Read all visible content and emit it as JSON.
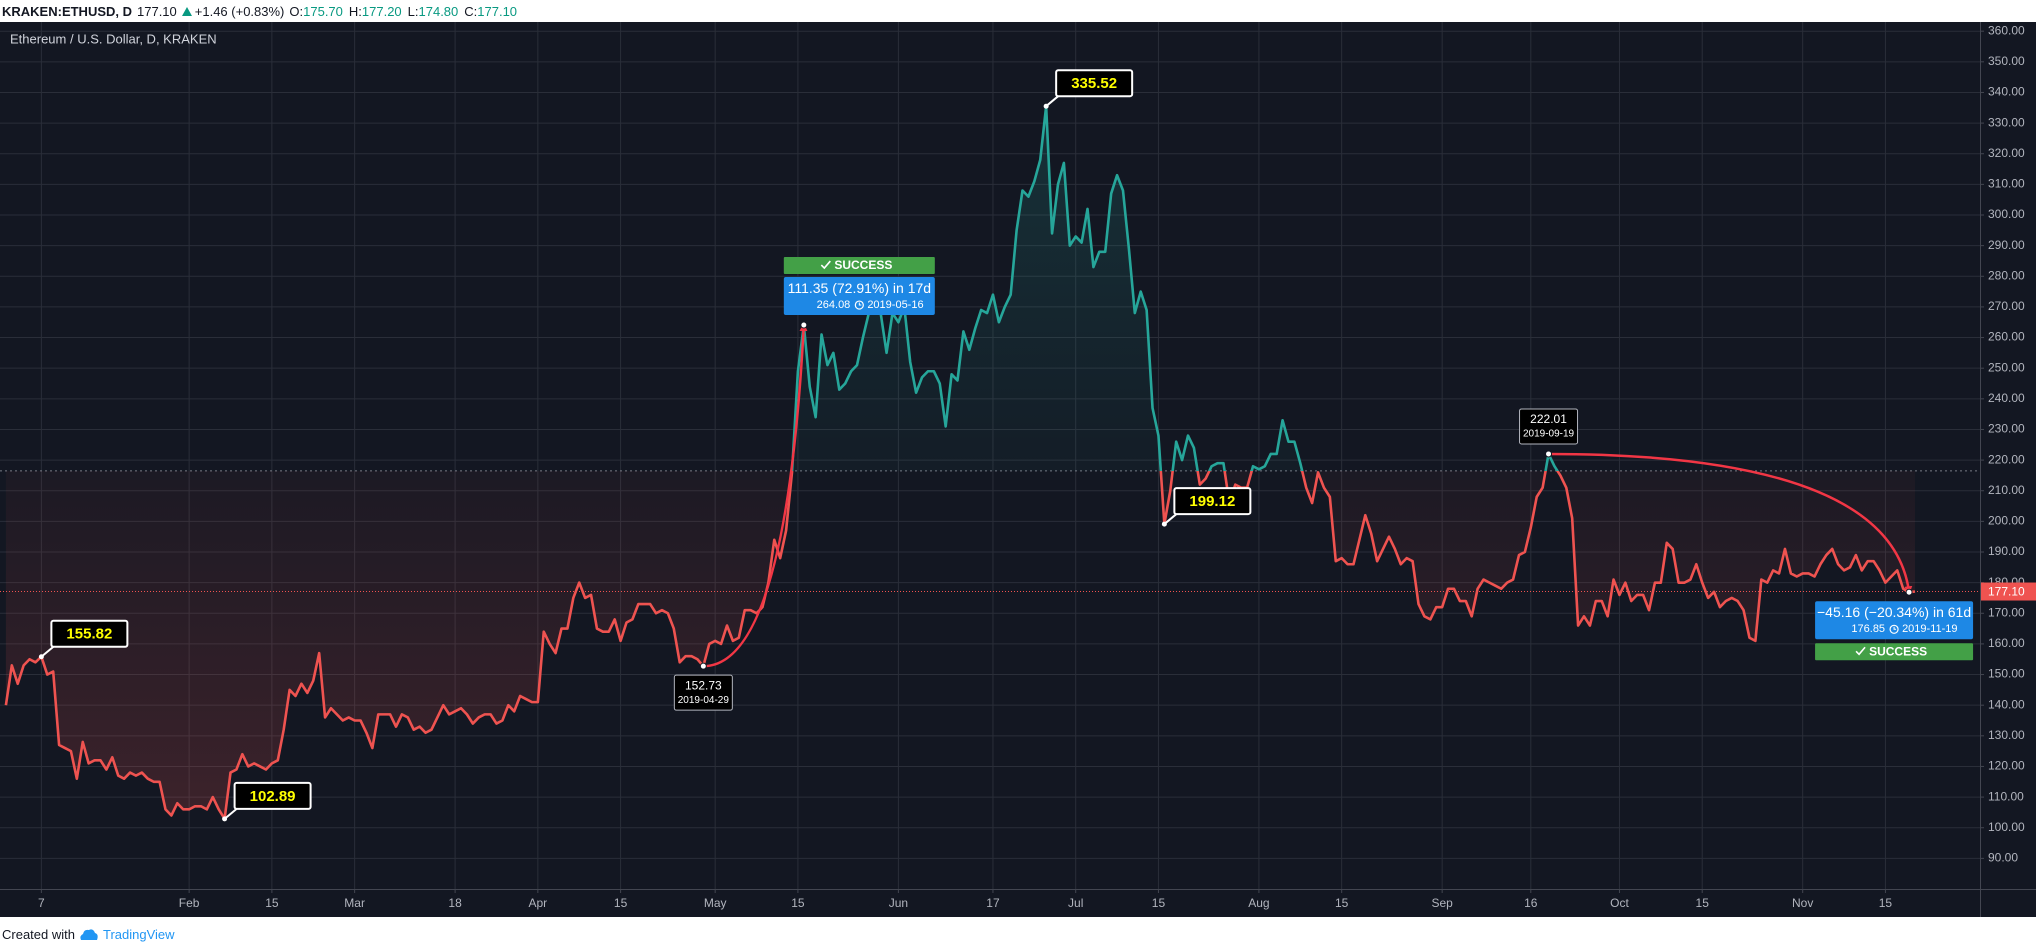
{
  "header": {
    "symbol": "KRAKEN:ETHUSD, D",
    "last": "177.10",
    "change": "+1.46 (+0.83%)",
    "ohlc": [
      {
        "label": "O:",
        "value": "175.70"
      },
      {
        "label": "H:",
        "value": "177.20"
      },
      {
        "label": "L:",
        "value": "174.80"
      },
      {
        "label": "C:",
        "value": "177.10"
      }
    ]
  },
  "footer": {
    "text": "Created with",
    "brand": "TradingView"
  },
  "chart_data": {
    "type": "line",
    "style": "baseline",
    "title": "Ethereum / U.S. Dollar, D, KRAKEN",
    "above_color": "#26a69a",
    "below_color": "#ef5350",
    "baseline": 216.5,
    "grid": true,
    "x": [
      "2019-01-01",
      "2019-01-02",
      "2019-01-03",
      "2019-01-04",
      "2019-01-05",
      "2019-01-06",
      "2019-01-07",
      "2019-01-08",
      "2019-01-09",
      "2019-01-10",
      "2019-01-11",
      "2019-01-12",
      "2019-01-13",
      "2019-01-14",
      "2019-01-15",
      "2019-01-16",
      "2019-01-17",
      "2019-01-18",
      "2019-01-19",
      "2019-01-20",
      "2019-01-21",
      "2019-01-22",
      "2019-01-23",
      "2019-01-24",
      "2019-01-25",
      "2019-01-26",
      "2019-01-27",
      "2019-01-28",
      "2019-01-29",
      "2019-01-30",
      "2019-01-31",
      "2019-02-01",
      "2019-02-02",
      "2019-02-03",
      "2019-02-04",
      "2019-02-05",
      "2019-02-06",
      "2019-02-07",
      "2019-02-08",
      "2019-02-09",
      "2019-02-10",
      "2019-02-11",
      "2019-02-12",
      "2019-02-13",
      "2019-02-14",
      "2019-02-15",
      "2019-02-16",
      "2019-02-17",
      "2019-02-18",
      "2019-02-19",
      "2019-02-20",
      "2019-02-21",
      "2019-02-22",
      "2019-02-23",
      "2019-02-24",
      "2019-02-25",
      "2019-02-26",
      "2019-02-27",
      "2019-02-28",
      "2019-03-01",
      "2019-03-02",
      "2019-03-03",
      "2019-03-04",
      "2019-03-05",
      "2019-03-06",
      "2019-03-07",
      "2019-03-08",
      "2019-03-09",
      "2019-03-10",
      "2019-03-11",
      "2019-03-12",
      "2019-03-13",
      "2019-03-14",
      "2019-03-15",
      "2019-03-16",
      "2019-03-17",
      "2019-03-18",
      "2019-03-19",
      "2019-03-20",
      "2019-03-21",
      "2019-03-22",
      "2019-03-23",
      "2019-03-24",
      "2019-03-25",
      "2019-03-26",
      "2019-03-27",
      "2019-03-28",
      "2019-03-29",
      "2019-03-30",
      "2019-03-31",
      "2019-04-01",
      "2019-04-02",
      "2019-04-03",
      "2019-04-04",
      "2019-04-05",
      "2019-04-06",
      "2019-04-07",
      "2019-04-08",
      "2019-04-09",
      "2019-04-10",
      "2019-04-11",
      "2019-04-12",
      "2019-04-13",
      "2019-04-14",
      "2019-04-15",
      "2019-04-16",
      "2019-04-17",
      "2019-04-18",
      "2019-04-19",
      "2019-04-20",
      "2019-04-21",
      "2019-04-22",
      "2019-04-23",
      "2019-04-24",
      "2019-04-25",
      "2019-04-26",
      "2019-04-27",
      "2019-04-28",
      "2019-04-29",
      "2019-04-30",
      "2019-05-01",
      "2019-05-02",
      "2019-05-03",
      "2019-05-04",
      "2019-05-05",
      "2019-05-06",
      "2019-05-07",
      "2019-05-08",
      "2019-05-09",
      "2019-05-10",
      "2019-05-11",
      "2019-05-12",
      "2019-05-13",
      "2019-05-14",
      "2019-05-15",
      "2019-05-16",
      "2019-05-17",
      "2019-05-18",
      "2019-05-19",
      "2019-05-20",
      "2019-05-21",
      "2019-05-22",
      "2019-05-23",
      "2019-05-24",
      "2019-05-25",
      "2019-05-26",
      "2019-05-27",
      "2019-05-28",
      "2019-05-29",
      "2019-05-30",
      "2019-05-31",
      "2019-06-01",
      "2019-06-02",
      "2019-06-03",
      "2019-06-04",
      "2019-06-05",
      "2019-06-06",
      "2019-06-07",
      "2019-06-08",
      "2019-06-09",
      "2019-06-10",
      "2019-06-11",
      "2019-06-12",
      "2019-06-13",
      "2019-06-14",
      "2019-06-15",
      "2019-06-16",
      "2019-06-17",
      "2019-06-18",
      "2019-06-19",
      "2019-06-20",
      "2019-06-21",
      "2019-06-22",
      "2019-06-23",
      "2019-06-24",
      "2019-06-25",
      "2019-06-26",
      "2019-06-27",
      "2019-06-28",
      "2019-06-29",
      "2019-06-30",
      "2019-07-01",
      "2019-07-02",
      "2019-07-03",
      "2019-07-04",
      "2019-07-05",
      "2019-07-06",
      "2019-07-07",
      "2019-07-08",
      "2019-07-09",
      "2019-07-10",
      "2019-07-11",
      "2019-07-12",
      "2019-07-13",
      "2019-07-14",
      "2019-07-15",
      "2019-07-16",
      "2019-07-17",
      "2019-07-18",
      "2019-07-19",
      "2019-07-20",
      "2019-07-21",
      "2019-07-22",
      "2019-07-23",
      "2019-07-24",
      "2019-07-25",
      "2019-07-26",
      "2019-07-27",
      "2019-07-28",
      "2019-07-29",
      "2019-07-30",
      "2019-07-31",
      "2019-08-01",
      "2019-08-02",
      "2019-08-03",
      "2019-08-04",
      "2019-08-05",
      "2019-08-06",
      "2019-08-07",
      "2019-08-08",
      "2019-08-09",
      "2019-08-10",
      "2019-08-11",
      "2019-08-12",
      "2019-08-13",
      "2019-08-14",
      "2019-08-15",
      "2019-08-16",
      "2019-08-17",
      "2019-08-18",
      "2019-08-19",
      "2019-08-20",
      "2019-08-21",
      "2019-08-22",
      "2019-08-23",
      "2019-08-24",
      "2019-08-25",
      "2019-08-26",
      "2019-08-27",
      "2019-08-28",
      "2019-08-29",
      "2019-08-30",
      "2019-08-31",
      "2019-09-01",
      "2019-09-02",
      "2019-09-03",
      "2019-09-04",
      "2019-09-05",
      "2019-09-06",
      "2019-09-07",
      "2019-09-08",
      "2019-09-09",
      "2019-09-10",
      "2019-09-11",
      "2019-09-12",
      "2019-09-13",
      "2019-09-14",
      "2019-09-15",
      "2019-09-16",
      "2019-09-17",
      "2019-09-18",
      "2019-09-19",
      "2019-09-20",
      "2019-09-21",
      "2019-09-22",
      "2019-09-23",
      "2019-09-24",
      "2019-09-25",
      "2019-09-26",
      "2019-09-27",
      "2019-09-28",
      "2019-09-29",
      "2019-09-30",
      "2019-10-01",
      "2019-10-02",
      "2019-10-03",
      "2019-10-04",
      "2019-10-05",
      "2019-10-06",
      "2019-10-07",
      "2019-10-08",
      "2019-10-09",
      "2019-10-10",
      "2019-10-11",
      "2019-10-12",
      "2019-10-13",
      "2019-10-14",
      "2019-10-15",
      "2019-10-16",
      "2019-10-17",
      "2019-10-18",
      "2019-10-19",
      "2019-10-20",
      "2019-10-21",
      "2019-10-22",
      "2019-10-23",
      "2019-10-24",
      "2019-10-25",
      "2019-10-26",
      "2019-10-27",
      "2019-10-28",
      "2019-10-29",
      "2019-10-30",
      "2019-10-31",
      "2019-11-01",
      "2019-11-02",
      "2019-11-03",
      "2019-11-04",
      "2019-11-05",
      "2019-11-06",
      "2019-11-07",
      "2019-11-08",
      "2019-11-09",
      "2019-11-10",
      "2019-11-11",
      "2019-11-12",
      "2019-11-13",
      "2019-11-14",
      "2019-11-15",
      "2019-11-16",
      "2019-11-17",
      "2019-11-18",
      "2019-11-19",
      "2019-11-20"
    ],
    "values": [
      140,
      153,
      147,
      153,
      155,
      154,
      155.82,
      150,
      151,
      127,
      126,
      125,
      116,
      128,
      121,
      122,
      122,
      119,
      123,
      117,
      116,
      118,
      117,
      118,
      116,
      115,
      115,
      106,
      104,
      108,
      106,
      106,
      107,
      107,
      106,
      110,
      106,
      102.89,
      118,
      119,
      124,
      120,
      121,
      120,
      119,
      121,
      122,
      132,
      145,
      143,
      147,
      144,
      148,
      157,
      136,
      139,
      137,
      135,
      136,
      135,
      135,
      131,
      126,
      137,
      137,
      137,
      133,
      137,
      136,
      132,
      133,
      131,
      132,
      136,
      140,
      137,
      138,
      139,
      137,
      134,
      136,
      137,
      137,
      134,
      135,
      140,
      138,
      143,
      142,
      141,
      141,
      164,
      160,
      157,
      165,
      165,
      175,
      180,
      175,
      176,
      165,
      164,
      164,
      168,
      161,
      167,
      168,
      173,
      173,
      173,
      170,
      171,
      170,
      165,
      154,
      156,
      156,
      155,
      152.73,
      160,
      161,
      160,
      166,
      161,
      162,
      171,
      171,
      170,
      172,
      180,
      194,
      188,
      197,
      216,
      249,
      264.08,
      244,
      234,
      261,
      251,
      255,
      243,
      245,
      249,
      251,
      260,
      268,
      270,
      268,
      255,
      268,
      265,
      270,
      252,
      242,
      247,
      249,
      249,
      245,
      231,
      248,
      246,
      262,
      256,
      263,
      269,
      268,
      274,
      265,
      270,
      274,
      295,
      308,
      306,
      311,
      318,
      335.52,
      294,
      310,
      317,
      290,
      293,
      291,
      302,
      283,
      288,
      288,
      307,
      313,
      308,
      289,
      268,
      275,
      269,
      237,
      228,
      199.12,
      210,
      226,
      220,
      228,
      224,
      212,
      214,
      218,
      219,
      219,
      206,
      212,
      211,
      211,
      218,
      217,
      218,
      222,
      222,
      233,
      226,
      226,
      219,
      211,
      206,
      216,
      211,
      208,
      187,
      188,
      186,
      186,
      194,
      202,
      196,
      187,
      191,
      195,
      191,
      186,
      188,
      187,
      173,
      169,
      168,
      172,
      172,
      178,
      178,
      174,
      174,
      169,
      178,
      181,
      180,
      179,
      178,
      180,
      181,
      189,
      190,
      198,
      208,
      211,
      222.01,
      218,
      215,
      211,
      201,
      166,
      169,
      166,
      174,
      174,
      169,
      181,
      176,
      180,
      174,
      176,
      176,
      171,
      180,
      180,
      193,
      191,
      180,
      180,
      181,
      186,
      180,
      175,
      177,
      172,
      174,
      175,
      174,
      171,
      162,
      161,
      181,
      180,
      184,
      183,
      191,
      183,
      182,
      183,
      183,
      182,
      186,
      189,
      191,
      186,
      184,
      185,
      189,
      184,
      187,
      187,
      184,
      180,
      182,
      184,
      178,
      176.85,
      177.1
    ],
    "last_value": {
      "value": 177.1,
      "label": "177.10"
    },
    "xlim": [
      "2018-12-31",
      "2019-12-01"
    ],
    "xticks": [
      {
        "value": "2019-01-07",
        "label": "7"
      },
      {
        "value": "2019-02-01",
        "label": "Feb"
      },
      {
        "value": "2019-02-15",
        "label": "15"
      },
      {
        "value": "2019-03-01",
        "label": "Mar"
      },
      {
        "value": "2019-03-18",
        "label": "18"
      },
      {
        "value": "2019-04-01",
        "label": "Apr"
      },
      {
        "value": "2019-04-15",
        "label": "15"
      },
      {
        "value": "2019-05-01",
        "label": "May"
      },
      {
        "value": "2019-05-15",
        "label": "15"
      },
      {
        "value": "2019-06-01",
        "label": "Jun"
      },
      {
        "value": "2019-06-17",
        "label": "17"
      },
      {
        "value": "2019-07-01",
        "label": "Jul"
      },
      {
        "value": "2019-07-15",
        "label": "15"
      },
      {
        "value": "2019-08-01",
        "label": "Aug"
      },
      {
        "value": "2019-08-15",
        "label": "15"
      },
      {
        "value": "2019-09-01",
        "label": "Sep"
      },
      {
        "value": "2019-09-16",
        "label": "16"
      },
      {
        "value": "2019-10-01",
        "label": "Oct"
      },
      {
        "value": "2019-10-15",
        "label": "15"
      },
      {
        "value": "2019-11-01",
        "label": "Nov"
      },
      {
        "value": "2019-11-15",
        "label": "15"
      }
    ],
    "ylim": [
      80,
      363
    ],
    "yticks": [
      {
        "value": 90,
        "label": "90.00"
      },
      {
        "value": 100,
        "label": "100.00"
      },
      {
        "value": 110,
        "label": "110.00"
      },
      {
        "value": 120,
        "label": "120.00"
      },
      {
        "value": 130,
        "label": "130.00"
      },
      {
        "value": 140,
        "label": "140.00"
      },
      {
        "value": 150,
        "label": "150.00"
      },
      {
        "value": 160,
        "label": "160.00"
      },
      {
        "value": 170,
        "label": "170.00"
      },
      {
        "value": 180,
        "label": "180.00"
      },
      {
        "value": 190,
        "label": "190.00"
      },
      {
        "value": 200,
        "label": "200.00"
      },
      {
        "value": 210,
        "label": "210.00"
      },
      {
        "value": 220,
        "label": "220.00"
      },
      {
        "value": 230,
        "label": "230.00"
      },
      {
        "value": 240,
        "label": "240.00"
      },
      {
        "value": 250,
        "label": "250.00"
      },
      {
        "value": 260,
        "label": "260.00"
      },
      {
        "value": 270,
        "label": "270.00"
      },
      {
        "value": 280,
        "label": "280.00"
      },
      {
        "value": 290,
        "label": "290.00"
      },
      {
        "value": 300,
        "label": "300.00"
      },
      {
        "value": 310,
        "label": "310.00"
      },
      {
        "value": 320,
        "label": "320.00"
      },
      {
        "value": 330,
        "label": "330.00"
      },
      {
        "value": 340,
        "label": "340.00"
      },
      {
        "value": 350,
        "label": "350.00"
      },
      {
        "value": 360,
        "label": "360.00"
      }
    ],
    "annotations": [
      {
        "x": "2019-01-07",
        "value": 155.82
      },
      {
        "x": "2019-02-07",
        "value": 102.89
      },
      {
        "x": "2019-06-26",
        "value": 335.52
      },
      {
        "x": "2019-07-16",
        "value": 199.12
      }
    ],
    "measures": [
      {
        "from": {
          "x": "2019-04-29",
          "value": 152.73
        },
        "to": {
          "x": "2019-05-16",
          "value": 264.08
        },
        "label": "111.35 (72.91%) in 17d",
        "status": "SUCCESS"
      },
      {
        "from": {
          "x": "2019-09-19",
          "value": 222.01
        },
        "to": {
          "x": "2019-11-19",
          "value": 176.85
        },
        "label": "−45.16 (−20.34%) in 61d",
        "status": "SUCCESS"
      }
    ]
  }
}
